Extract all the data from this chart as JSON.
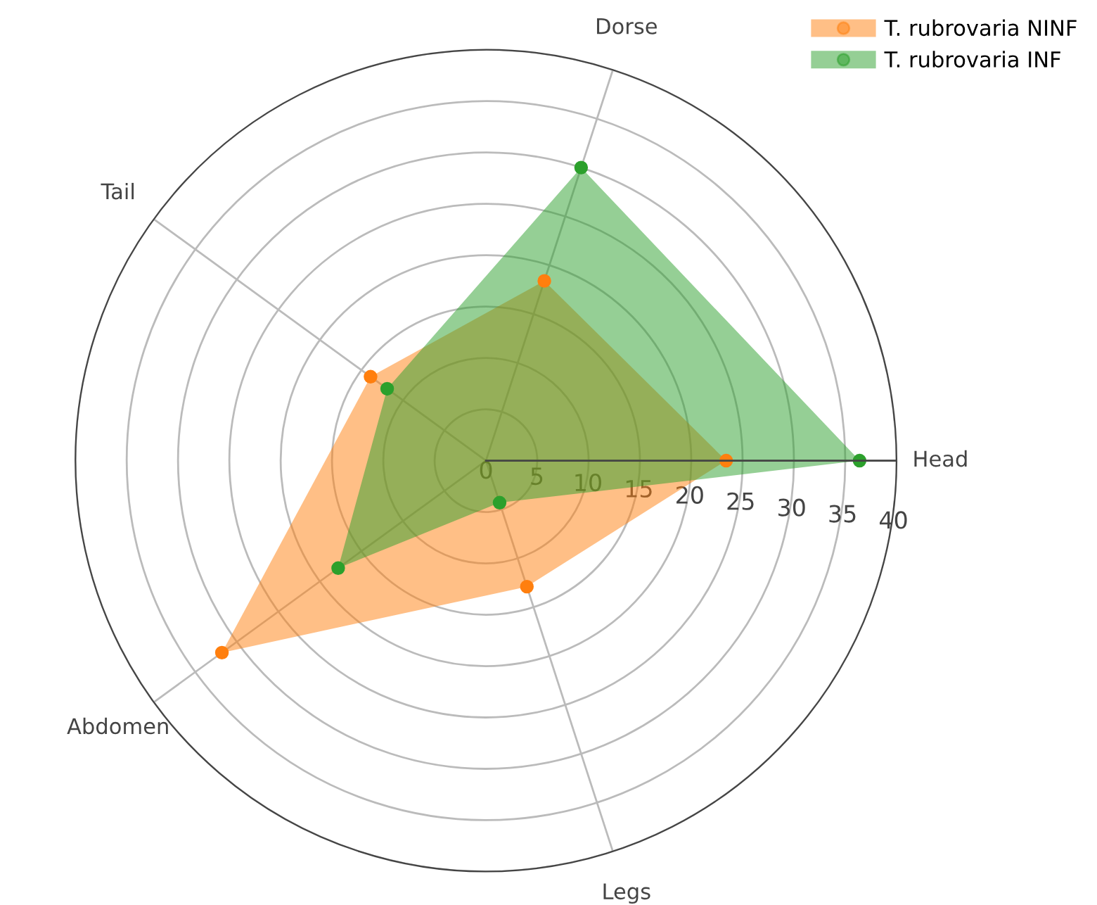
{
  "chart_data": {
    "type": "radar",
    "categories": [
      "Dorse",
      "Head",
      "Legs",
      "Abdomen",
      "Tail"
    ],
    "series": [
      {
        "name": "T. rubrovaria NINF",
        "color": "#ff7f0e",
        "values": [
          18.4,
          23.4,
          12.9,
          31.8,
          13.9
        ]
      },
      {
        "name": "T. rubrovaria INF",
        "color": "#2ca02c",
        "values": [
          30,
          36.4,
          4.3,
          17.8,
          11.9
        ]
      }
    ],
    "ylim": [
      0,
      40
    ],
    "yticks": [
      0,
      5,
      10,
      15,
      20,
      25,
      30,
      35,
      40
    ],
    "grid": true,
    "legend": "top right",
    "marker": "circle"
  }
}
